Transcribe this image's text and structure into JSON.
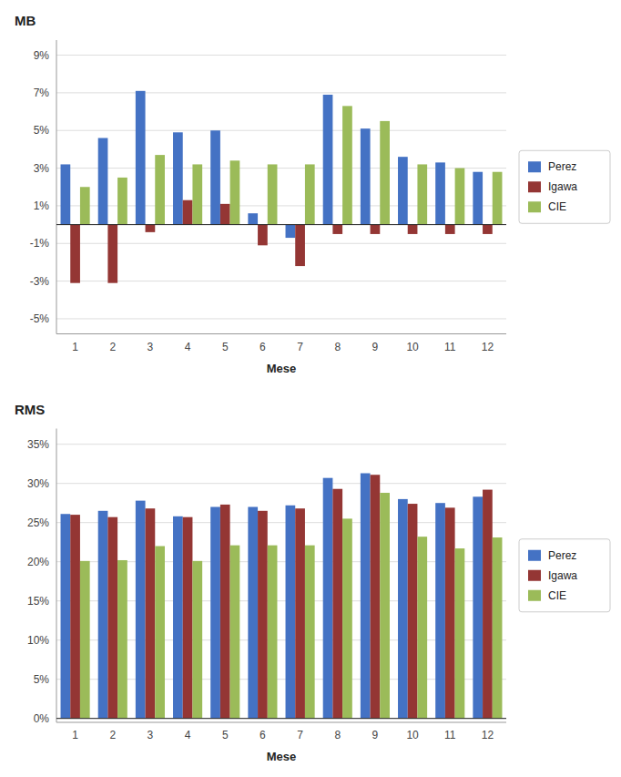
{
  "chart_data": [
    {
      "type": "bar",
      "ylabel": "MB",
      "xlabel": "Mese",
      "categories": [
        "1",
        "2",
        "3",
        "4",
        "5",
        "6",
        "7",
        "8",
        "9",
        "10",
        "11",
        "12"
      ],
      "series": [
        {
          "name": "Perez",
          "color": "#4472c4",
          "values": [
            3.2,
            4.6,
            7.1,
            4.9,
            5.0,
            0.6,
            -0.7,
            6.9,
            5.1,
            3.6,
            3.3,
            2.8
          ]
        },
        {
          "name": "Igawa",
          "color": "#943634",
          "values": [
            -3.1,
            -3.1,
            -0.4,
            1.3,
            1.1,
            -1.1,
            -2.2,
            -0.5,
            -0.5,
            -0.5,
            -0.5,
            -0.5
          ]
        },
        {
          "name": "CIE",
          "color": "#9bbb59",
          "values": [
            2.0,
            2.5,
            3.7,
            3.2,
            3.4,
            3.2,
            3.2,
            6.3,
            5.5,
            3.2,
            3.0,
            2.8
          ]
        }
      ],
      "ylim": [
        -5.8,
        9.8
      ],
      "yticks": [
        {
          "value": -5,
          "label": "-5%"
        },
        {
          "value": -3,
          "label": "-3%"
        },
        {
          "value": -1,
          "label": "-1%"
        },
        {
          "value": 1,
          "label": "1%"
        },
        {
          "value": 3,
          "label": "3%"
        },
        {
          "value": 5,
          "label": "5%"
        },
        {
          "value": 7,
          "label": "7%"
        },
        {
          "value": 9,
          "label": "9%"
        }
      ],
      "grid": true,
      "legend": "right"
    },
    {
      "type": "bar",
      "ylabel": "RMS",
      "xlabel": "Mese",
      "categories": [
        "1",
        "2",
        "3",
        "4",
        "5",
        "6",
        "7",
        "8",
        "9",
        "10",
        "11",
        "12"
      ],
      "series": [
        {
          "name": "Perez",
          "color": "#4472c4",
          "values": [
            26.1,
            26.5,
            27.8,
            25.8,
            27.0,
            27.0,
            27.2,
            30.7,
            31.3,
            28.0,
            27.5,
            28.3
          ]
        },
        {
          "name": "Igawa",
          "color": "#943634",
          "values": [
            26.0,
            25.7,
            26.8,
            25.7,
            27.3,
            26.5,
            26.8,
            29.3,
            31.1,
            27.4,
            26.9,
            29.2
          ]
        },
        {
          "name": "CIE",
          "color": "#9bbb59",
          "values": [
            20.1,
            20.2,
            22.0,
            20.1,
            22.1,
            22.1,
            22.1,
            25.5,
            28.8,
            23.2,
            21.7,
            23.1
          ]
        }
      ],
      "ylim": [
        -0.5,
        37
      ],
      "yticks": [
        {
          "value": 0,
          "label": "0%"
        },
        {
          "value": 5,
          "label": "5%"
        },
        {
          "value": 10,
          "label": "10%"
        },
        {
          "value": 15,
          "label": "15%"
        },
        {
          "value": 20,
          "label": "20%"
        },
        {
          "value": 25,
          "label": "25%"
        },
        {
          "value": 30,
          "label": "30%"
        },
        {
          "value": 35,
          "label": "35%"
        }
      ],
      "grid": true,
      "legend": "right"
    }
  ]
}
